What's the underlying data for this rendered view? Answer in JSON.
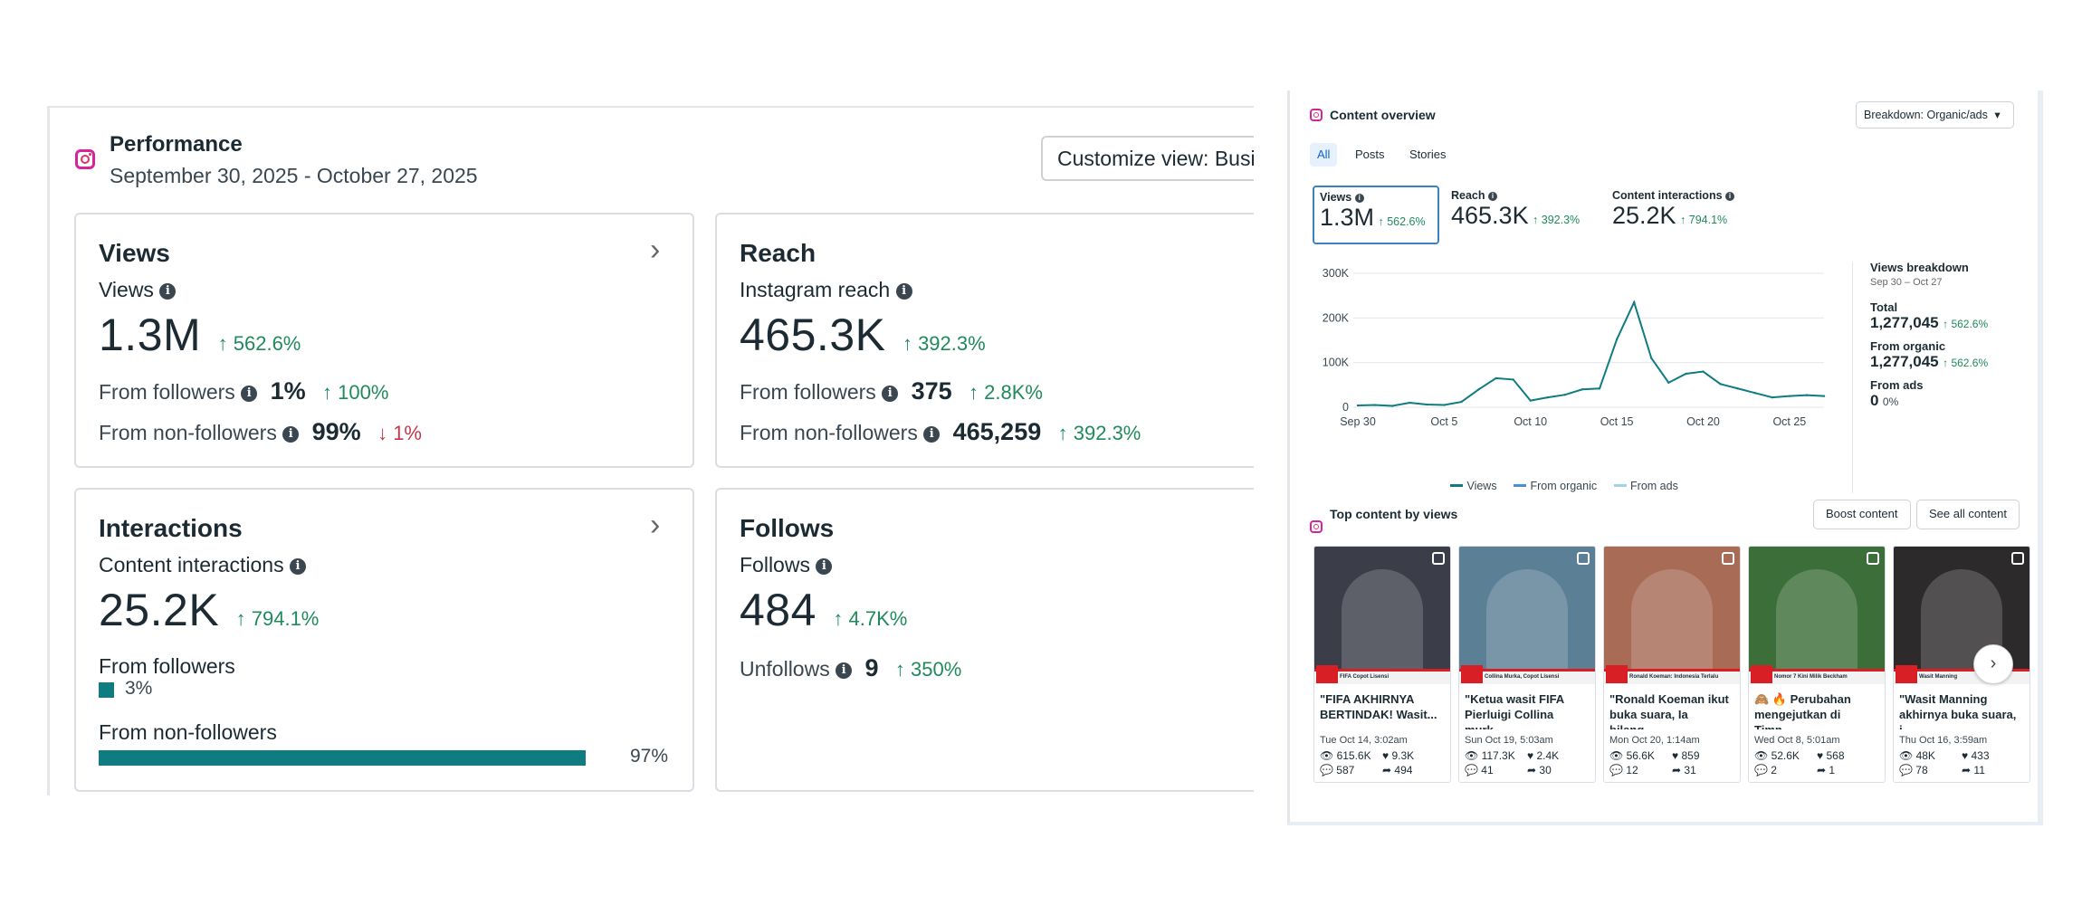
{
  "performance": {
    "title": "Performance",
    "date_range": "September 30, 2025 - October 27, 2025",
    "customize_label": "Customize view: Busin",
    "views": {
      "title": "Views",
      "metric_label": "Views",
      "value": "1.3M",
      "change": "562.6%",
      "followers_label": "From followers",
      "followers_value": "1%",
      "followers_change": "100%",
      "nonfollowers_label": "From non-followers",
      "nonfollowers_value": "99%",
      "nonfollowers_change": "1%"
    },
    "reach": {
      "title": "Reach",
      "metric_label": "Instagram reach",
      "value": "465.3K",
      "change": "392.3%",
      "followers_label": "From followers",
      "followers_value": "375",
      "followers_change": "2.8K%",
      "nonfollowers_label": "From non-followers",
      "nonfollowers_value": "465,259",
      "nonfollowers_change": "392.3%"
    },
    "interactions": {
      "title": "Interactions",
      "metric_label": "Content interactions",
      "value": "25.2K",
      "change": "794.1%",
      "followers_label": "From followers",
      "followers_pct": "3%",
      "followers_fraction": 0.03,
      "nonfollowers_label": "From non-followers",
      "nonfollowers_pct": "97%",
      "nonfollowers_fraction": 0.97,
      "bar_color": "#0e7c80"
    },
    "follows": {
      "title": "Follows",
      "metric_label": "Follows",
      "value": "484",
      "change": "4.7K%",
      "unfollows_label": "Unfollows",
      "unfollows_value": "9",
      "unfollows_change": "350%"
    }
  },
  "overview": {
    "title": "Content overview",
    "breakdown_label": "Breakdown: Organic/ads",
    "tabs": [
      "All",
      "Posts",
      "Stories"
    ],
    "metrics": [
      {
        "label": "Views",
        "value": "1.3M",
        "change": "562.6%"
      },
      {
        "label": "Reach",
        "value": "465.3K",
        "change": "392.3%"
      },
      {
        "label": "Content interactions",
        "value": "25.2K",
        "change": "794.1%"
      }
    ],
    "breakdown": {
      "title": "Views breakdown",
      "range": "Sep 30 – Oct 27",
      "total_label": "Total",
      "total_value": "1,277,045",
      "total_change": "562.6%",
      "organic_label": "From organic",
      "organic_value": "1,277,045",
      "organic_change": "562.6%",
      "ads_label": "From ads",
      "ads_value": "0",
      "ads_change": "0%"
    },
    "legend": [
      "Views",
      "From organic",
      "From ads"
    ]
  },
  "chart_data": {
    "type": "line",
    "x": [
      "Sep 30",
      "Oct 1",
      "Oct 2",
      "Oct 3",
      "Oct 4",
      "Oct 5",
      "Oct 6",
      "Oct 7",
      "Oct 8",
      "Oct 9",
      "Oct 10",
      "Oct 11",
      "Oct 12",
      "Oct 13",
      "Oct 14",
      "Oct 15",
      "Oct 16",
      "Oct 17",
      "Oct 18",
      "Oct 19",
      "Oct 20",
      "Oct 21",
      "Oct 22",
      "Oct 23",
      "Oct 24",
      "Oct 25",
      "Oct 26",
      "Oct 27"
    ],
    "x_tick_labels": [
      "Sep 30",
      "Oct 5",
      "Oct 10",
      "Oct 15",
      "Oct 20",
      "Oct 25"
    ],
    "y_tick_labels": [
      "0",
      "100K",
      "200K",
      "300K"
    ],
    "ylim": [
      0,
      300000
    ],
    "series": [
      {
        "name": "Views",
        "color": "#0e7c80",
        "values": [
          4000,
          5000,
          3000,
          10000,
          6000,
          5000,
          12000,
          40000,
          65000,
          62000,
          15000,
          22000,
          28000,
          40000,
          42000,
          152000,
          235000,
          110000,
          55000,
          75000,
          80000,
          52000,
          42000,
          32000,
          22000,
          25000,
          27000,
          25000
        ]
      }
    ],
    "grid": true,
    "legend_position": "bottom"
  },
  "top_content": {
    "title": "Top content by views",
    "boost_label": "Boost content",
    "see_all_label": "See all content",
    "items": [
      {
        "caption": "\"FIFA AKHIRNYA BERTINDAK! Wasit...",
        "date": "Tue Oct 14, 3:02am",
        "views": "615.6K",
        "likes": "9.3K",
        "comments": "587",
        "shares": "494",
        "banner": "FIFA Copot Lisensi",
        "bg": "#3b3e48"
      },
      {
        "caption": "\"Ketua wasit FIFA Pierluigi Collina murk...",
        "date": "Sun Oct 19, 5:03am",
        "views": "117.3K",
        "likes": "2.4K",
        "comments": "41",
        "shares": "30",
        "banner": "Collina Murka, Copot Lisensi",
        "bg": "#5b7f95"
      },
      {
        "caption": "\"Ronald Koeman ikut buka suara, Ia bilang...",
        "date": "Mon Oct 20, 1:14am",
        "views": "56.6K",
        "likes": "859",
        "comments": "12",
        "shares": "31",
        "banner": "Ronald Koeman: Indonesia Terlalu",
        "bg": "#a86b55"
      },
      {
        "caption": "🙈 🔥 Perubahan mengejutkan di Timn...",
        "date": "Wed Oct 8, 5:01am",
        "views": "52.6K",
        "likes": "568",
        "comments": "2",
        "shares": "1",
        "banner": "Nomor 7 Kini Milik Beckham",
        "bg": "#3c6e3a"
      },
      {
        "caption": "\"Wasit Manning akhirnya buka suara, i...",
        "date": "Thu Oct 16, 3:59am",
        "views": "48K",
        "likes": "433",
        "comments": "78",
        "shares": "11",
        "banner": "Wasit Manning",
        "bg": "#2c2a2a"
      }
    ]
  }
}
